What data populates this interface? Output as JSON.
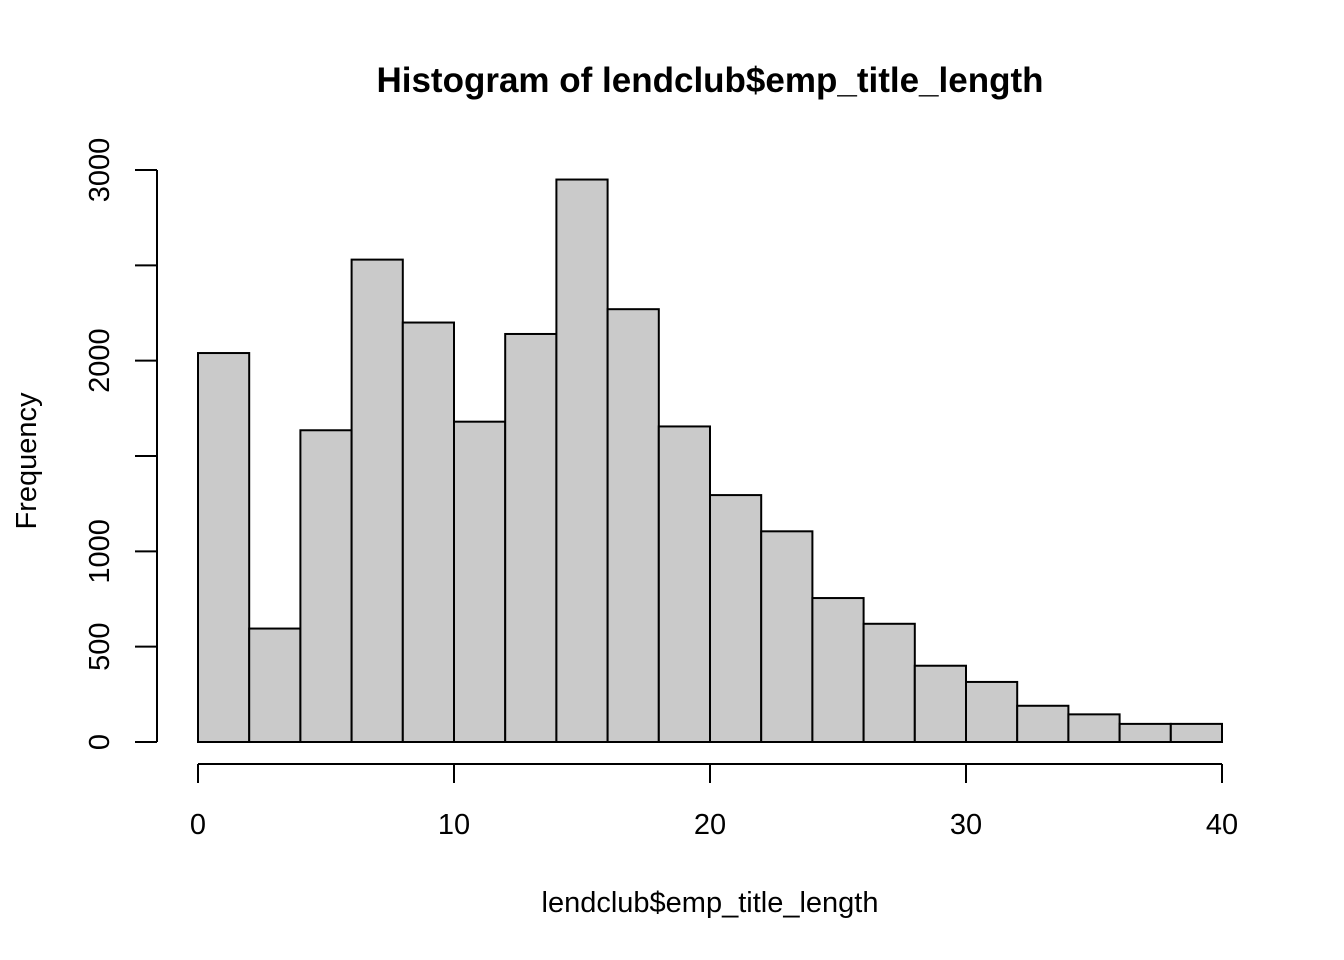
{
  "chart_data": {
    "type": "bar",
    "title": "Histogram of lendclub$emp_title_length",
    "xlabel": "lendclub$emp_title_length",
    "ylabel": "Frequency",
    "bin_edges": [
      0,
      2,
      4,
      6,
      8,
      10,
      12,
      14,
      16,
      18,
      20,
      22,
      24,
      26,
      28,
      30,
      32,
      34,
      36,
      38,
      40
    ],
    "values": [
      2040,
      595,
      1635,
      2530,
      2200,
      1680,
      2140,
      2950,
      2270,
      1655,
      1295,
      1105,
      755,
      620,
      400,
      315,
      190,
      145,
      95,
      95
    ],
    "xlim": [
      0,
      40
    ],
    "ylim": [
      0,
      3000
    ],
    "x_ticks": [
      0,
      10,
      20,
      30,
      40
    ],
    "x_tick_labels": [
      "0",
      "10",
      "20",
      "30",
      "40"
    ],
    "y_ticks": [
      0,
      500,
      1000,
      1500,
      2000,
      2500,
      3000
    ],
    "y_tick_labels": [
      "0",
      "500",
      "1000",
      "",
      "2000",
      "",
      "3000"
    ],
    "bar_color": "#cacaca",
    "grid": false,
    "legend": "none"
  }
}
